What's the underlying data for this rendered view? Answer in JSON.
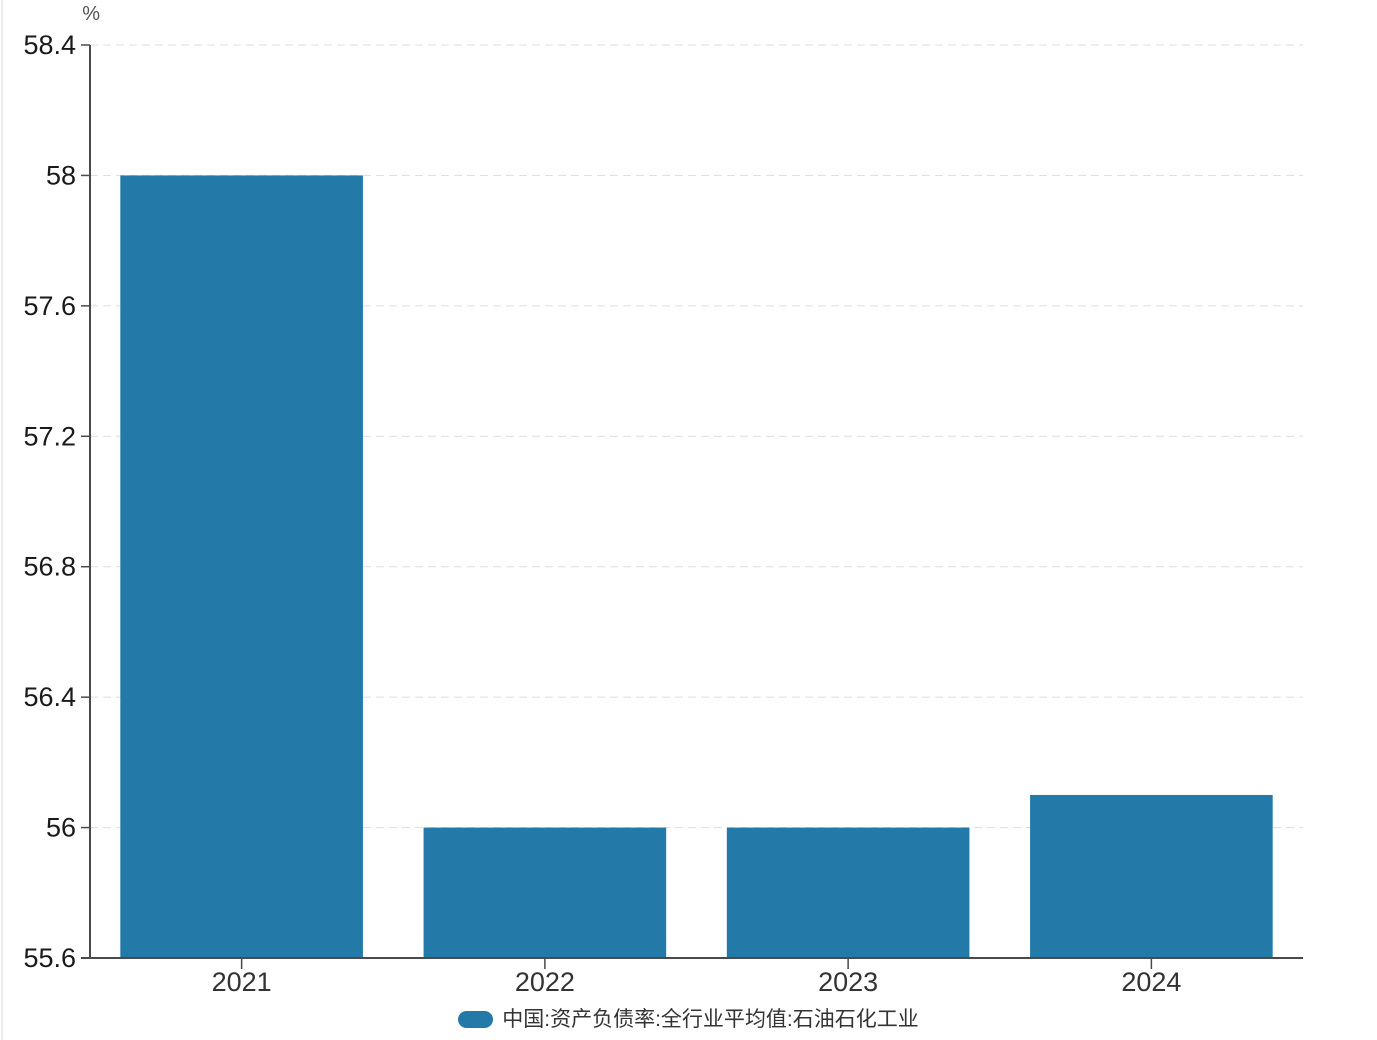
{
  "chart_data": {
    "type": "bar",
    "unit_label": "%",
    "categories": [
      "2021",
      "2022",
      "2023",
      "2024"
    ],
    "series": [
      {
        "name": "中国:资产负债率:全行业平均值:石油石化工业",
        "values": [
          58.0,
          56.0,
          56.0,
          56.1
        ]
      }
    ],
    "ylim": [
      55.6,
      58.4
    ],
    "yticks": [
      55.6,
      56.0,
      56.4,
      56.8,
      57.2,
      57.6,
      58.0,
      58.4
    ],
    "grid": true,
    "gridline_style": "dashed",
    "legend_position": "bottom",
    "bar_color": "#2379A8"
  },
  "legend": {
    "label": "中国:资产负债率:全行业平均值:石油石化工业",
    "swatch_color": "#2379A8"
  }
}
